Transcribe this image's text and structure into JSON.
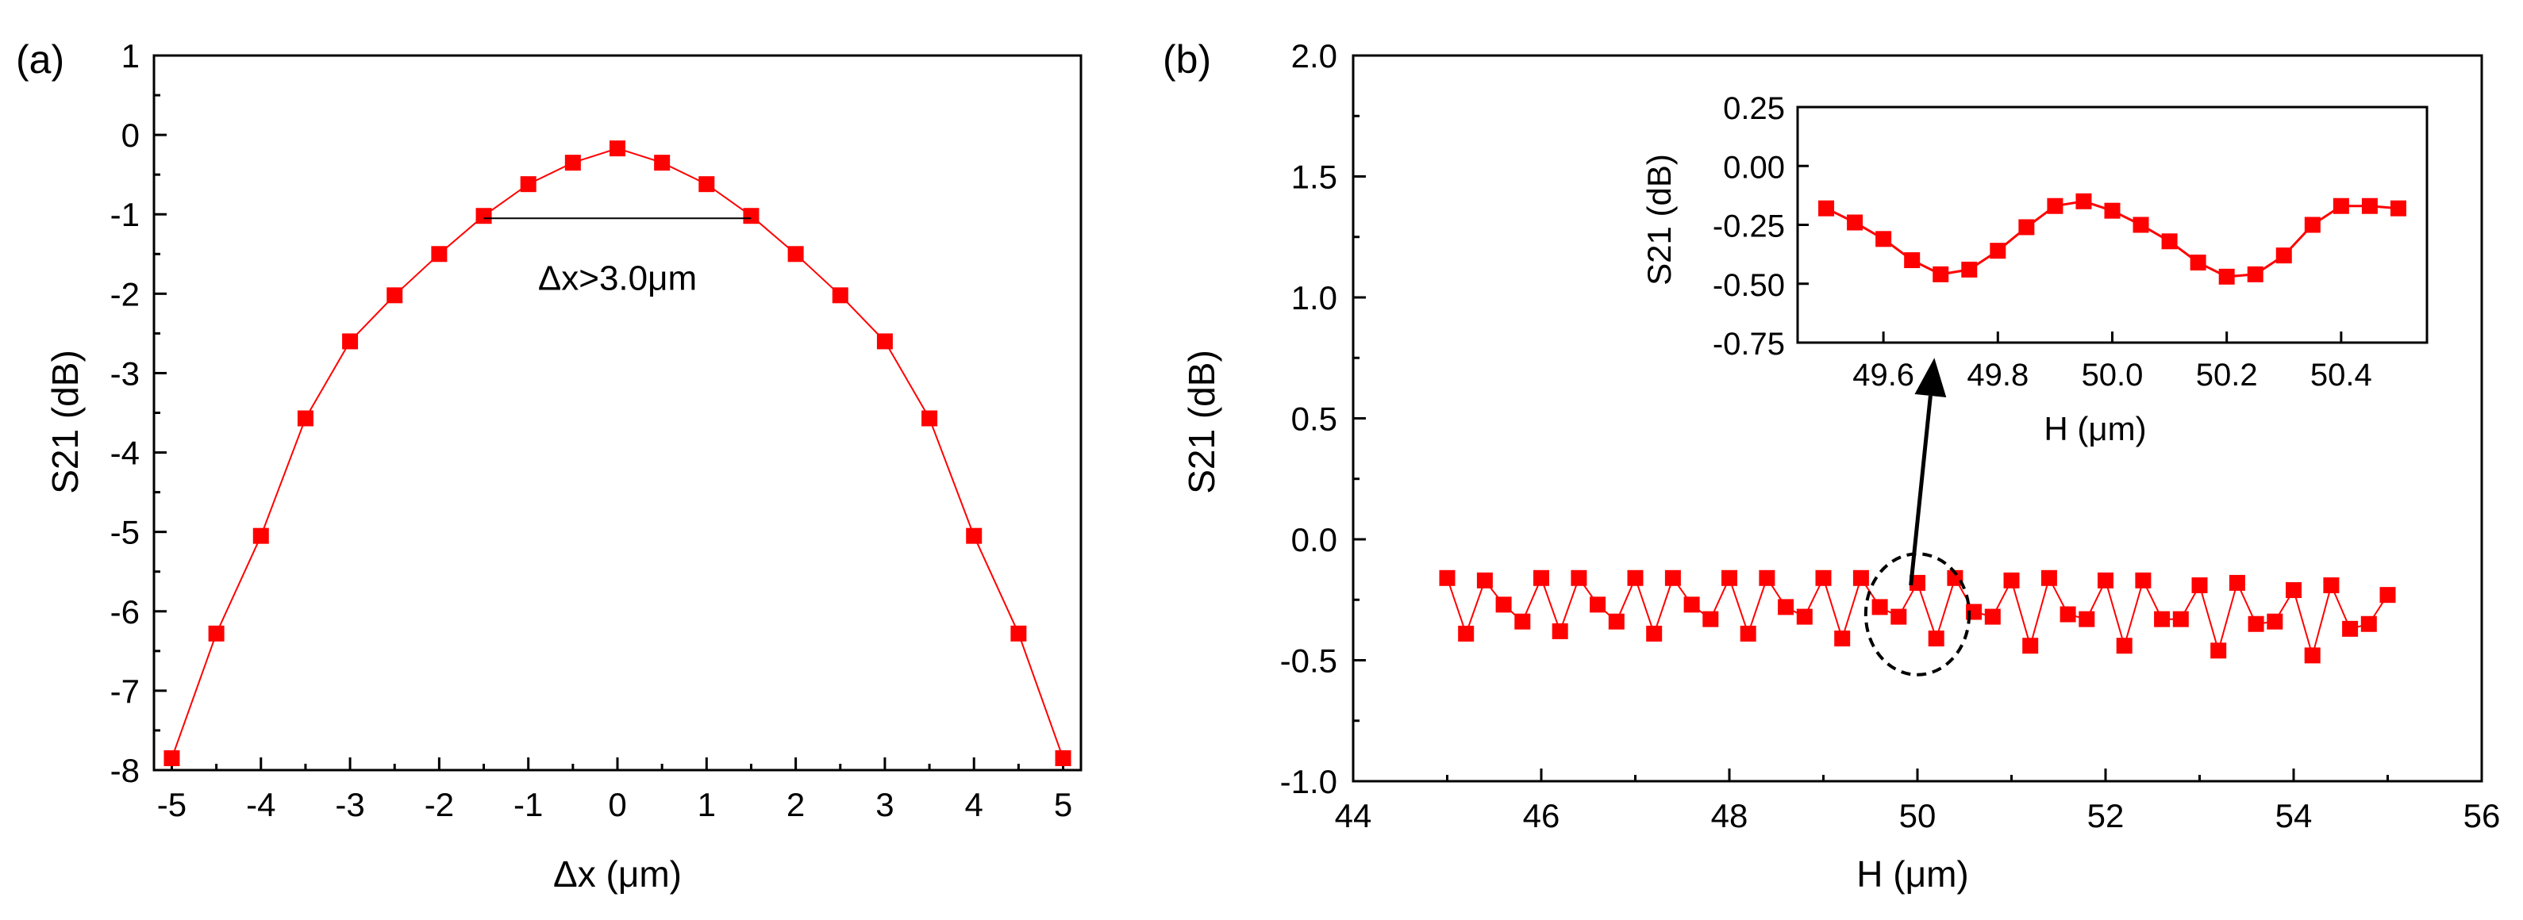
{
  "colors": {
    "series": "#ff0000",
    "axis": "#000000",
    "background": "#ffffff"
  },
  "chart_data": [
    {
      "id": "a",
      "panel_label": "(a)",
      "type": "line",
      "xlabel": "Δx (μm)",
      "ylabel": "S21 (dB)",
      "xlim": [
        -5.2,
        5.2
      ],
      "ylim": [
        -8,
        1
      ],
      "xticks": [
        -5,
        -4,
        -3,
        -2,
        -1,
        0,
        1,
        2,
        3,
        4,
        5
      ],
      "yticks": [
        1,
        0,
        -1,
        -2,
        -3,
        -4,
        -5,
        -6,
        -7,
        -8
      ],
      "series": [
        {
          "name": "S21",
          "marker": "square",
          "x": [
            -5,
            -4.5,
            -4,
            -3.5,
            -3,
            -2.5,
            -2,
            -1.5,
            -1,
            -0.5,
            0,
            0.5,
            1,
            1.5,
            2,
            2.5,
            3,
            3.5,
            4,
            4.5,
            5
          ],
          "y": [
            -7.85,
            -6.28,
            -5.05,
            -3.57,
            -2.6,
            -2.02,
            -1.5,
            -1.02,
            -0.62,
            -0.35,
            -0.17,
            -0.35,
            -0.62,
            -1.02,
            -1.5,
            -2.02,
            -2.6,
            -3.57,
            -5.05,
            -6.28,
            -7.85
          ]
        }
      ],
      "annotations": [
        {
          "text": "Δx>3.0μm",
          "x1": -1.5,
          "x2": 1.5,
          "y": -1.05,
          "text_x": 0,
          "text_y": -1.95
        }
      ]
    },
    {
      "id": "b",
      "panel_label": "(b)",
      "type": "line",
      "xlabel": "H (μm)",
      "ylabel": "S21 (dB)",
      "xlim": [
        44,
        56
      ],
      "ylim": [
        -1.0,
        2.0
      ],
      "xticks": [
        44,
        46,
        48,
        50,
        52,
        54,
        56
      ],
      "yticks": [
        "2.0",
        "1.5",
        "1.0",
        "0.5",
        "0.0",
        "-0.5",
        "-1.0"
      ],
      "series": [
        {
          "name": "S21",
          "marker": "square",
          "x": [
            45.0,
            45.2,
            45.4,
            45.6,
            45.8,
            46.0,
            46.2,
            46.4,
            46.6,
            46.8,
            47.0,
            47.2,
            47.4,
            47.6,
            47.8,
            48.0,
            48.2,
            48.4,
            48.6,
            48.8,
            49.0,
            49.2,
            49.4,
            49.6,
            49.8,
            50.0,
            50.2,
            50.4,
            50.6,
            50.8,
            51.0,
            51.2,
            51.4,
            51.6,
            51.8,
            52.0,
            52.2,
            52.4,
            52.6,
            52.8,
            53.0,
            53.2,
            53.4,
            53.6,
            53.8,
            54.0,
            54.2,
            54.4,
            54.6,
            54.8,
            55.0
          ],
          "y": [
            -0.16,
            -0.39,
            -0.17,
            -0.27,
            -0.34,
            -0.16,
            -0.38,
            -0.16,
            -0.27,
            -0.34,
            -0.16,
            -0.39,
            -0.16,
            -0.27,
            -0.33,
            -0.16,
            -0.39,
            -0.16,
            -0.28,
            -0.32,
            -0.16,
            -0.41,
            -0.16,
            -0.28,
            -0.32,
            -0.18,
            -0.41,
            -0.16,
            -0.3,
            -0.32,
            -0.17,
            -0.44,
            -0.16,
            -0.31,
            -0.33,
            -0.17,
            -0.44,
            -0.17,
            -0.33,
            -0.33,
            -0.19,
            -0.46,
            -0.18,
            -0.35,
            -0.34,
            -0.21,
            -0.48,
            -0.19,
            -0.37,
            -0.35,
            -0.23
          ]
        }
      ],
      "annotations": [
        {
          "type": "dashed-ellipse",
          "cx": 50.0,
          "cy": -0.31,
          "rx": 0.55,
          "ry": 0.25
        },
        {
          "type": "arrow",
          "from": [
            49.93,
            -0.19
          ],
          "to": [
            50.18,
            0.75
          ]
        }
      ],
      "inset": {
        "type": "line",
        "xlabel": "H (μm)",
        "ylabel": "S21 (dB)",
        "xlim": [
          49.45,
          50.55
        ],
        "ylim": [
          -0.75,
          0.25
        ],
        "xticks": [
          "49.6",
          "49.8",
          "50.0",
          "50.2",
          "50.4"
        ],
        "xtick_values": [
          49.6,
          49.8,
          50.0,
          50.2,
          50.4
        ],
        "yticks": [
          "0.25",
          "0.00",
          "-0.25",
          "-0.50",
          "-0.75"
        ],
        "ytick_values": [
          0.25,
          0.0,
          -0.25,
          -0.5,
          -0.75
        ],
        "series": [
          {
            "name": "S21",
            "marker": "square",
            "x": [
              49.5,
              49.55,
              49.6,
              49.65,
              49.7,
              49.75,
              49.8,
              49.85,
              49.9,
              49.95,
              50.0,
              50.05,
              50.1,
              50.15,
              50.2,
              50.25,
              50.3,
              50.35,
              50.4,
              50.45,
              50.5
            ],
            "y": [
              -0.18,
              -0.24,
              -0.31,
              -0.4,
              -0.46,
              -0.44,
              -0.36,
              -0.26,
              -0.17,
              -0.15,
              -0.19,
              -0.25,
              -0.32,
              -0.41,
              -0.47,
              -0.46,
              -0.38,
              -0.25,
              -0.17,
              -0.17,
              -0.18
            ]
          }
        ]
      }
    }
  ]
}
